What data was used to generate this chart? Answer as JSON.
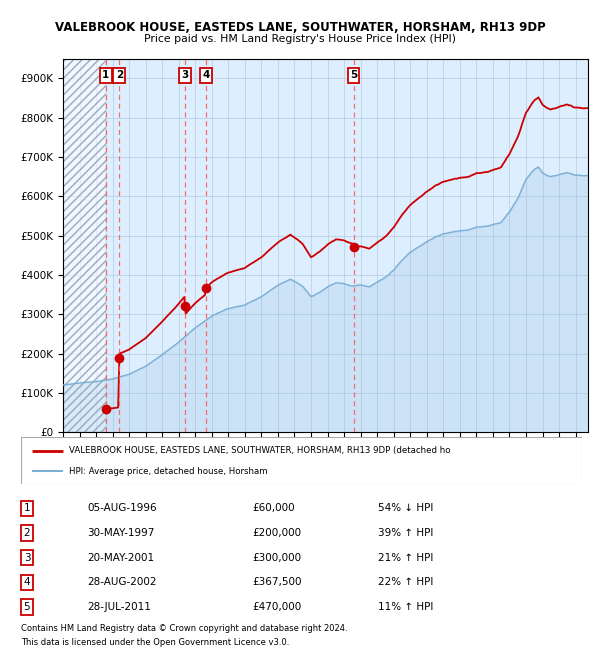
{
  "title1": "VALEBROOK HOUSE, EASTEDS LANE, SOUTHWATER, HORSHAM, RH13 9DP",
  "title2": "Price paid vs. HM Land Registry's House Price Index (HPI)",
  "sales": [
    {
      "num": 1,
      "date": "05-AUG-1996",
      "year": 1996.59,
      "price": 60000,
      "pct": "54%",
      "dir": "↓"
    },
    {
      "num": 2,
      "date": "30-MAY-1997",
      "year": 1997.41,
      "price": 200000,
      "pct": "39%",
      "dir": "↑"
    },
    {
      "num": 3,
      "date": "20-MAY-2001",
      "year": 2001.38,
      "price": 300000,
      "pct": "21%",
      "dir": "↑"
    },
    {
      "num": 4,
      "date": "28-AUG-2002",
      "year": 2002.66,
      "price": 367500,
      "pct": "22%",
      "dir": "↑"
    },
    {
      "num": 5,
      "date": "28-JUL-2011",
      "year": 2011.57,
      "price": 470000,
      "pct": "11%",
      "dir": "↑"
    }
  ],
  "legend_label_red": "VALEBROOK HOUSE, EASTEDS LANE, SOUTHWATER, HORSHAM, RH13 9DP (detached ho",
  "legend_label_blue": "HPI: Average price, detached house, Horsham",
  "footer1": "Contains HM Land Registry data © Crown copyright and database right 2024.",
  "footer2": "This data is licensed under the Open Government Licence v3.0.",
  "red_color": "#cc0000",
  "blue_color": "#7bafd4",
  "bg_color": "#ddeeff",
  "hatch_color": "#aabbcc",
  "grid_color": "#b0c4d8",
  "dashed_color": "#ff5555",
  "ylim": [
    0,
    950000
  ],
  "yticks": [
    0,
    100000,
    200000,
    300000,
    400000,
    500000,
    600000,
    700000,
    800000,
    900000
  ],
  "xlim_start": 1994.0,
  "xlim_end": 2025.75
}
